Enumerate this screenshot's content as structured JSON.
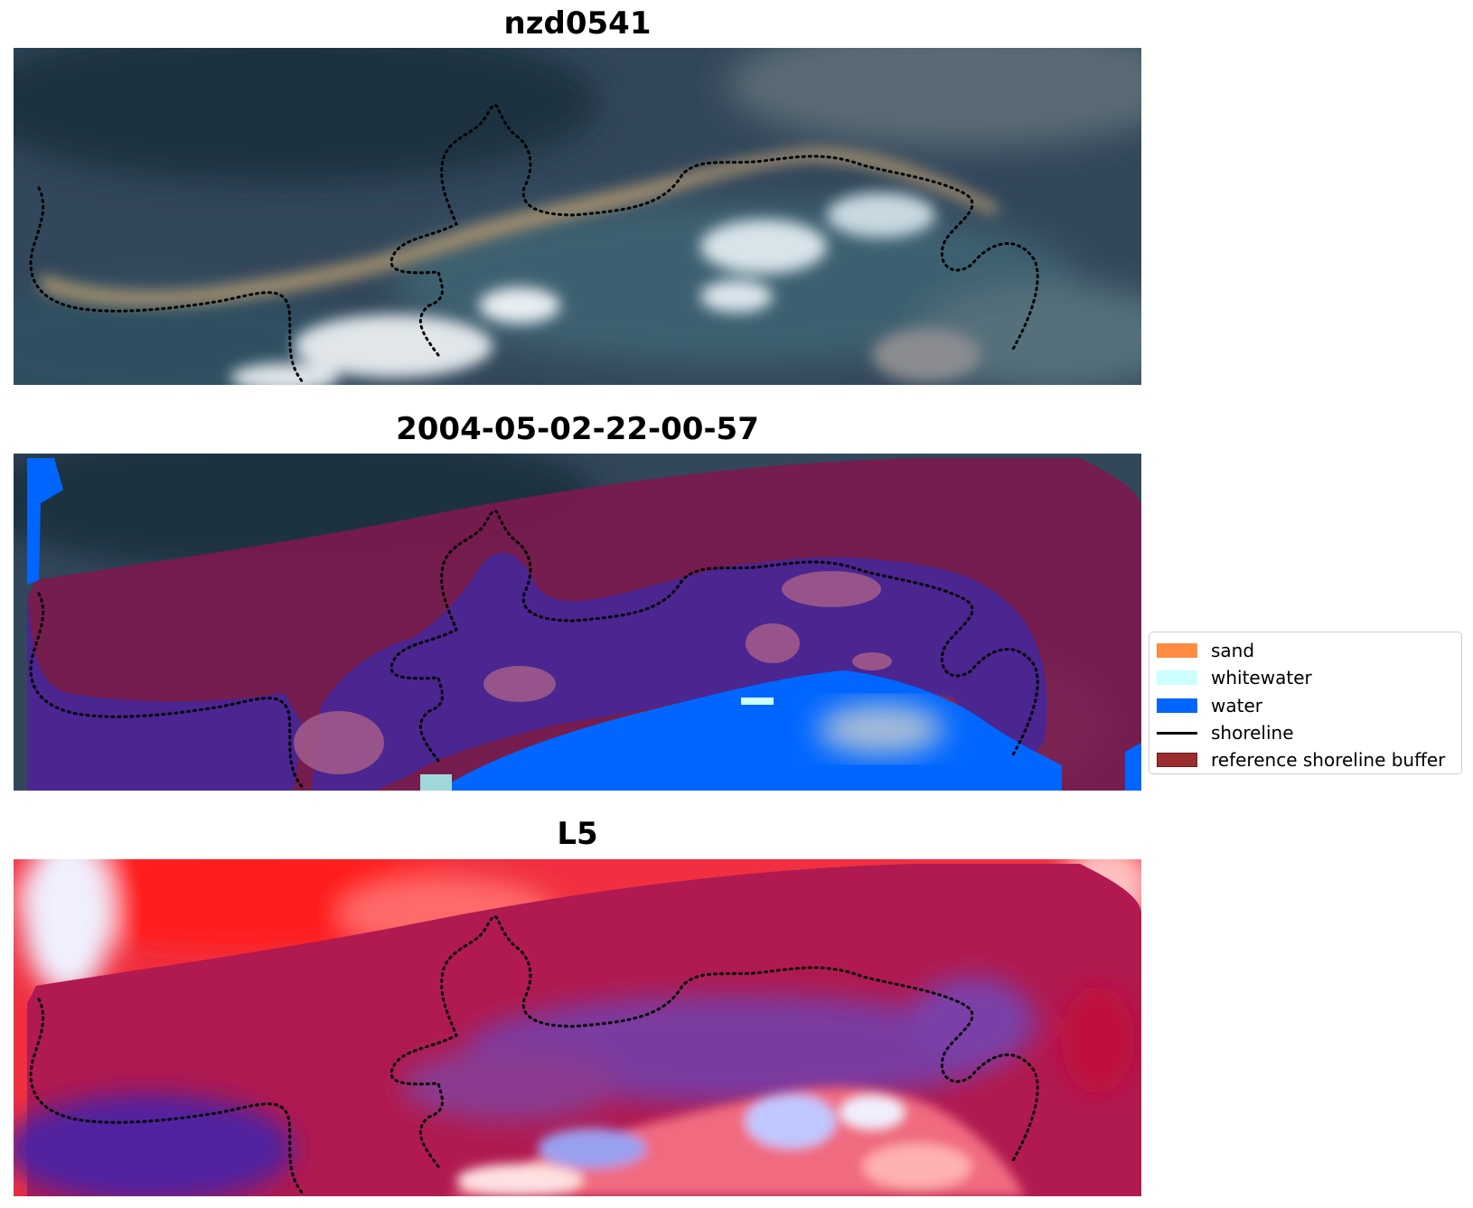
{
  "panels": [
    {
      "title": "nzd0541",
      "kind": "rgb-satellite-image"
    },
    {
      "title": "2004-05-02-22-00-57",
      "kind": "classified-overlay"
    },
    {
      "title": "L5",
      "kind": "index-colormap"
    }
  ],
  "legend": {
    "items": [
      {
        "label": "sand",
        "color": "#ff8c42",
        "type": "patch"
      },
      {
        "label": "whitewater",
        "color": "#ccffff",
        "type": "patch"
      },
      {
        "label": "water",
        "color": "#0066ff",
        "type": "patch"
      },
      {
        "label": "shoreline",
        "color": "#000000",
        "type": "line"
      },
      {
        "label": "reference shoreline buffer",
        "color": "#9b2d30",
        "type": "patch"
      }
    ]
  },
  "colors": {
    "forest": "#2e4250",
    "sand_beach": "#a89270",
    "surf": "#e8eef2",
    "buffer_overlay": "#7a1a4e",
    "water_class": "#0066ff",
    "land_class": "#4b2590",
    "index_high": "#ff1a1a",
    "index_mid": "#b01a50",
    "index_low": "#5020a0"
  }
}
